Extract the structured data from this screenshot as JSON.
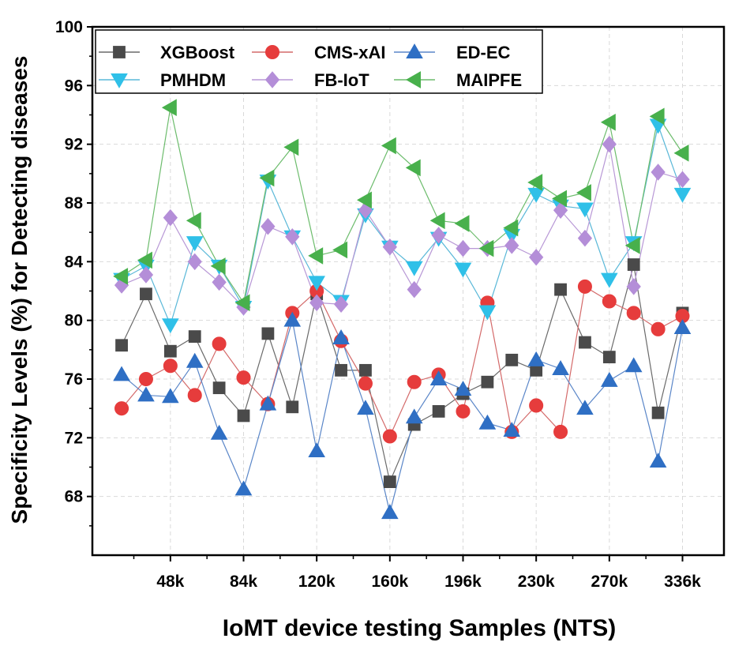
{
  "chart_data": {
    "type": "line",
    "title": "",
    "xlabel": "IoMT device testing Samples (NTS)",
    "ylabel": "Specificity Levels (%) for Detecting diseases",
    "x_tick_labels": [
      "48k",
      "84k",
      "120k",
      "160k",
      "196k",
      "230k",
      "270k",
      "336k"
    ],
    "x_tick_positions": [
      3,
      6,
      9,
      12,
      15,
      18,
      21,
      24
    ],
    "ylim": [
      64,
      100
    ],
    "yticks": [
      68,
      72,
      76,
      80,
      84,
      88,
      92,
      96,
      100
    ],
    "grid": true,
    "legend_position": "top",
    "x": [
      1,
      2,
      3,
      4,
      5,
      6,
      7,
      8,
      9,
      10,
      11,
      12,
      13,
      14,
      15,
      16,
      17,
      18,
      19,
      20,
      21,
      22,
      23,
      24
    ],
    "series": [
      {
        "name": "XGBoost",
        "marker": "square",
        "color": "#4a4a4a",
        "line_color": "#6a6a6a",
        "values": [
          78.3,
          81.8,
          77.9,
          78.9,
          75.4,
          73.5,
          79.1,
          74.1,
          81.8,
          76.6,
          76.6,
          69.0,
          72.9,
          73.8,
          75.0,
          75.8,
          77.3,
          76.6,
          82.1,
          78.5,
          77.5,
          83.8,
          73.7,
          80.5
        ]
      },
      {
        "name": "CMS-xAI",
        "marker": "circle",
        "color": "#e63c3c",
        "line_color": "#d46a6a",
        "values": [
          74.0,
          76.0,
          76.9,
          74.9,
          78.4,
          76.1,
          74.3,
          80.5,
          82.0,
          78.6,
          75.7,
          72.1,
          75.8,
          76.3,
          73.8,
          81.2,
          72.4,
          74.2,
          72.4,
          82.3,
          81.3,
          80.5,
          79.4,
          80.3
        ]
      },
      {
        "name": "ED-EC",
        "marker": "triangle-up",
        "color": "#2f6fc4",
        "line_color": "#5a86c8",
        "values": [
          76.3,
          74.9,
          74.8,
          77.2,
          72.3,
          68.5,
          74.3,
          80.0,
          71.1,
          78.8,
          74.0,
          66.9,
          73.4,
          76.0,
          75.3,
          73.0,
          72.5,
          77.3,
          76.7,
          74.0,
          75.9,
          76.9,
          70.4,
          79.5
        ]
      },
      {
        "name": "PMHDM",
        "marker": "triangle-down",
        "color": "#2fc0e8",
        "line_color": "#5ab8d8",
        "values": [
          82.8,
          83.7,
          79.7,
          85.3,
          83.7,
          80.9,
          89.5,
          85.7,
          82.6,
          81.3,
          87.2,
          85.0,
          83.6,
          85.6,
          83.5,
          80.6,
          85.8,
          88.6,
          87.8,
          87.6,
          82.8,
          85.3,
          93.3,
          88.6
        ]
      },
      {
        "name": "FB-IoT",
        "marker": "diamond",
        "color": "#b48ed8",
        "line_color": "#b898d6",
        "values": [
          82.4,
          83.1,
          87.0,
          84.0,
          82.6,
          80.9,
          86.4,
          85.7,
          81.2,
          81.1,
          87.5,
          85.0,
          82.1,
          85.8,
          84.9,
          84.9,
          85.1,
          84.3,
          87.5,
          85.6,
          92.0,
          82.3,
          90.1,
          89.6
        ]
      },
      {
        "name": "MAIPFE",
        "marker": "triangle-left",
        "color": "#48b04c",
        "line_color": "#6cbc6c",
        "values": [
          83.0,
          84.1,
          94.5,
          86.8,
          83.7,
          81.2,
          89.7,
          91.8,
          84.4,
          84.8,
          88.2,
          91.9,
          90.4,
          86.8,
          86.6,
          84.9,
          86.3,
          89.4,
          88.3,
          88.7,
          93.5,
          85.1,
          93.9,
          91.4
        ]
      }
    ]
  }
}
